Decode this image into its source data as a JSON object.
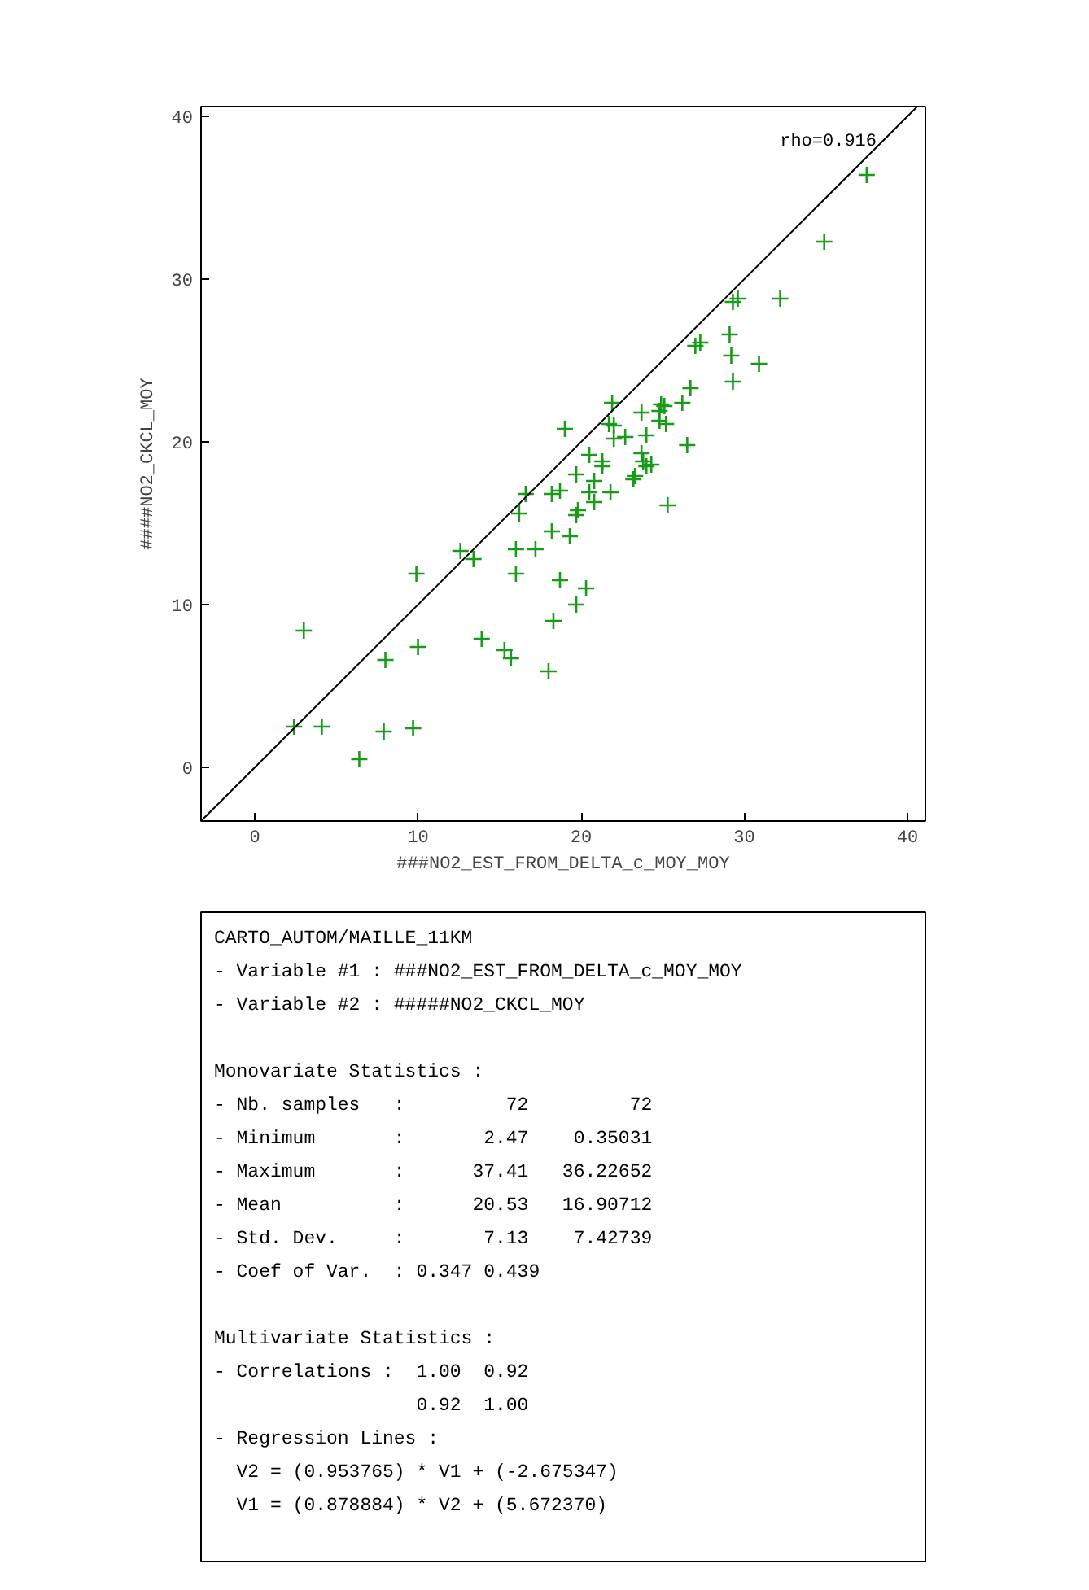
{
  "chart_data": {
    "type": "scatter",
    "xlabel": "###NO2_EST_FROM_DELTA_c_MOY_MOY",
    "ylabel": "####NO2_CKCL_MOY",
    "xlim": [
      -3.3,
      41.1
    ],
    "ylim": [
      -3.3,
      40.6
    ],
    "xticks": [
      0,
      10,
      20,
      30,
      40
    ],
    "yticks": [
      0,
      10,
      20,
      30,
      40
    ],
    "grid": false,
    "marker": "cross",
    "series": [
      {
        "color": "#1a9a1a",
        "x": [
          19.0,
          21.7,
          22.0,
          22.7,
          22.0,
          24.0,
          23.7,
          24.8,
          25.2,
          26.5,
          20.5,
          21.3,
          21.3,
          23.7,
          23.8,
          24.0,
          24.3,
          23.3,
          23.2,
          19.7,
          20.8,
          20.5,
          21.8,
          20.8,
          18.7,
          18.2,
          16.6,
          19.8,
          19.7,
          16.2,
          25.3,
          18.2,
          19.3,
          16.0,
          17.2,
          12.6,
          13.4,
          16.0,
          9.9,
          18.7,
          20.3,
          19.7,
          18.3,
          3.0,
          13.9,
          10.0,
          15.3,
          15.7,
          8.0,
          18.0,
          2.4,
          4.1,
          7.9,
          9.7,
          6.4,
          37.5,
          34.9,
          29.3,
          29.6,
          32.2,
          29.1,
          27.0,
          27.3,
          29.2,
          30.9,
          29.3,
          26.7,
          26.2,
          24.9,
          25.1,
          21.9,
          24.8
        ],
        "values": [
          20.8,
          21.1,
          21.0,
          20.3,
          20.2,
          20.4,
          21.8,
          21.9,
          21.1,
          19.8,
          19.2,
          18.8,
          18.5,
          19.3,
          18.8,
          18.5,
          18.6,
          17.9,
          17.7,
          18.0,
          17.6,
          16.9,
          16.9,
          16.3,
          17.0,
          16.8,
          16.8,
          15.8,
          15.5,
          15.6,
          16.1,
          14.5,
          14.2,
          13.4,
          13.4,
          13.3,
          12.8,
          11.9,
          11.9,
          11.5,
          11.0,
          10.0,
          9.0,
          8.4,
          7.9,
          7.4,
          7.2,
          6.7,
          6.6,
          5.9,
          2.5,
          2.5,
          2.2,
          2.4,
          0.5,
          36.4,
          32.3,
          28.6,
          28.8,
          28.8,
          26.6,
          25.9,
          26.1,
          25.3,
          24.8,
          23.7,
          23.3,
          22.4,
          22.3,
          22.2,
          22.4,
          21.3
        ]
      },
      {
        "type": "line",
        "marker": "none",
        "color": "#000000",
        "x": [
          -3.3,
          40.6
        ],
        "values": [
          -3.3,
          40.6
        ]
      }
    ],
    "annotations": [
      "rho=0.916",
      "CARTO_AUTOM/MAILLE_11KM",
      "- Variable #1 : ###NO2_EST_FROM_DELTA_c_MOY_MOY",
      "- Variable #2 : #####NO2_CKCL_MOY",
      "Monovariate Statistics :",
      "- Nb. samples   :         72         72",
      "- Minimum       :       2.47    0.35031",
      "- Maximum       :      37.41   36.22652",
      "- Mean          :      20.53   16.90712",
      "- Std. Dev.     :       7.13    7.42739",
      "- Coef of Var.  : 0.347 0.439",
      "Multivariate Statistics :",
      "- Correlations :  1.00  0.92",
      "                  0.92  1.00",
      "- Regression Lines :",
      "  V2 = (0.953765) * V1 + (-2.675347)",
      "  V1 = (0.878884) * V2 + (5.672370)"
    ]
  }
}
